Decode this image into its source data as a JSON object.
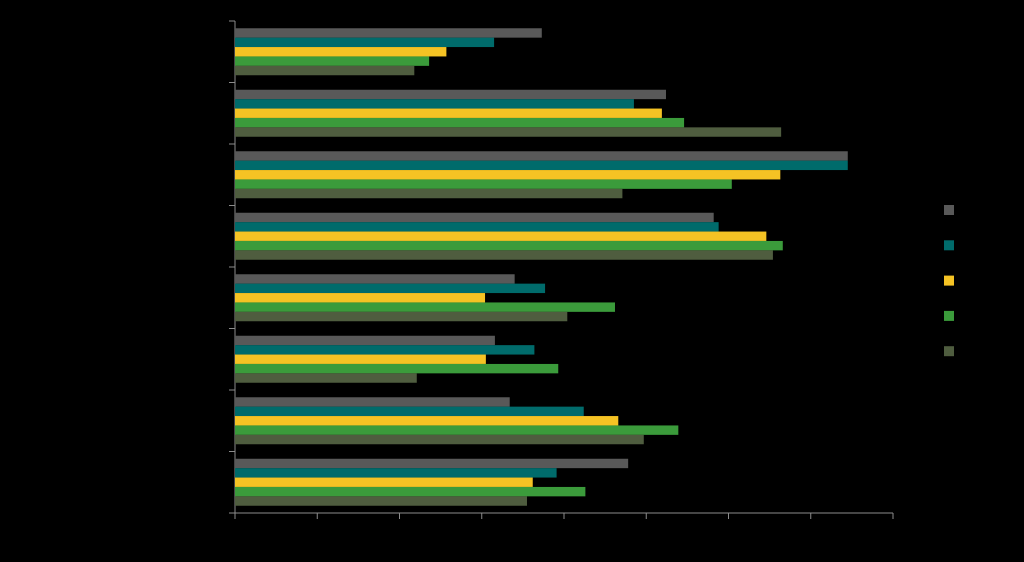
{
  "chart_data": {
    "type": "bar",
    "orientation": "horizontal",
    "categories": [
      null,
      null,
      null,
      null,
      null,
      null,
      null,
      null
    ],
    "series": [
      {
        "color": "#595959",
        "values": [
          3.73,
          5.24,
          7.45,
          5.82,
          3.4,
          3.16,
          3.34,
          4.78
        ]
      },
      {
        "color": "#006b6b",
        "values": [
          3.15,
          4.85,
          7.45,
          5.88,
          3.77,
          3.64,
          4.24,
          3.91
        ]
      },
      {
        "color": "#f5c324",
        "values": [
          2.57,
          5.19,
          6.63,
          6.46,
          3.04,
          3.05,
          4.66,
          3.62
        ]
      },
      {
        "color": "#3b9b3b",
        "values": [
          2.36,
          5.46,
          6.04,
          6.66,
          4.62,
          3.93,
          5.39,
          4.26
        ]
      },
      {
        "color": "#4f5d3f",
        "values": [
          2.18,
          6.64,
          4.71,
          6.54,
          4.04,
          2.21,
          4.97,
          3.55
        ]
      }
    ],
    "xlim": [
      0,
      8
    ],
    "xticks": [
      0,
      1,
      2,
      3,
      4,
      5,
      6,
      7,
      8
    ],
    "grid": false
  }
}
